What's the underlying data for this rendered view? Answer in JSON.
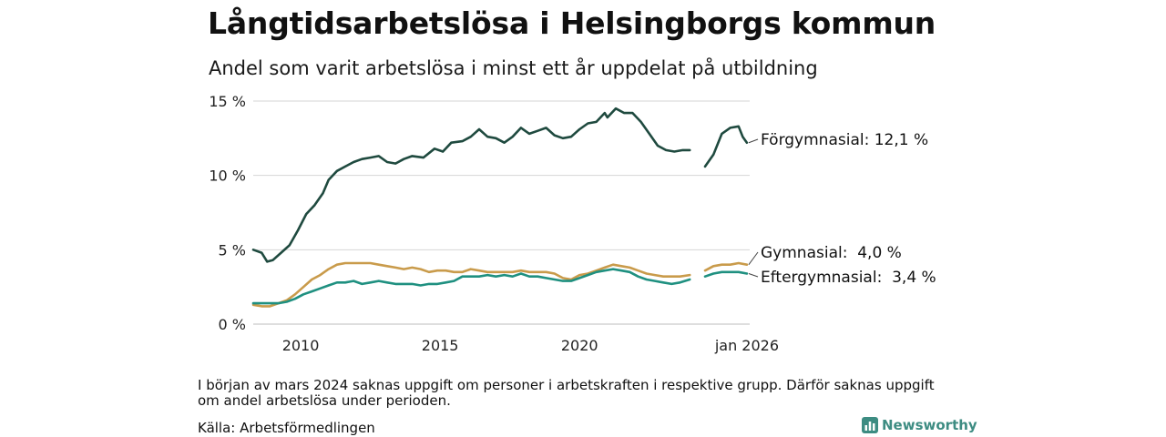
{
  "title": "Långtidsarbetslösa i Helsingborgs kommun",
  "subtitle": "Andel som varit arbetslösa i minst ett år uppdelat på utbildning",
  "note": "I början av mars 2024 saknas uppgift om personer i arbetskraften i respektive grupp. Därför saknas uppgift om andel arbetslösa under perioden.",
  "source": "Källa: Arbetsförmedlingen",
  "brand": "Newsworthy",
  "chart_data": {
    "type": "line",
    "title": "Långtidsarbetslösa i Helsingborgs kommun",
    "xlabel": "",
    "ylabel": "",
    "xlim": [
      2008.3,
      2026.1
    ],
    "ylim": [
      0,
      15
    ],
    "grid": true,
    "yticks": [
      0,
      5,
      10,
      15
    ],
    "ytick_labels": [
      "0 %",
      "5 %",
      "10 %",
      "15 %"
    ],
    "xticks": [
      2010,
      2015,
      2020,
      2026.0
    ],
    "xtick_labels": [
      "2010",
      "2015",
      "2020",
      "jan 2026"
    ],
    "gap": [
      2024.08,
      2024.5
    ],
    "series": [
      {
        "name": "Förgymnasial",
        "label": "Förgymnasial: 12,1 %",
        "color": "#1f4a3f",
        "points": [
          [
            2008.3,
            5.0
          ],
          [
            2008.6,
            4.8
          ],
          [
            2008.8,
            4.2
          ],
          [
            2009.0,
            4.3
          ],
          [
            2009.3,
            4.8
          ],
          [
            2009.6,
            5.3
          ],
          [
            2009.9,
            6.3
          ],
          [
            2010.2,
            7.4
          ],
          [
            2010.5,
            8.0
          ],
          [
            2010.8,
            8.8
          ],
          [
            2011.0,
            9.7
          ],
          [
            2011.3,
            10.3
          ],
          [
            2011.6,
            10.6
          ],
          [
            2011.9,
            10.9
          ],
          [
            2012.2,
            11.1
          ],
          [
            2012.5,
            11.2
          ],
          [
            2012.8,
            11.3
          ],
          [
            2013.1,
            10.9
          ],
          [
            2013.4,
            10.8
          ],
          [
            2013.7,
            11.1
          ],
          [
            2014.0,
            11.3
          ],
          [
            2014.4,
            11.2
          ],
          [
            2014.8,
            11.8
          ],
          [
            2015.1,
            11.6
          ],
          [
            2015.4,
            12.2
          ],
          [
            2015.8,
            12.3
          ],
          [
            2016.1,
            12.6
          ],
          [
            2016.4,
            13.1
          ],
          [
            2016.7,
            12.6
          ],
          [
            2017.0,
            12.5
          ],
          [
            2017.3,
            12.2
          ],
          [
            2017.6,
            12.6
          ],
          [
            2017.9,
            13.2
          ],
          [
            2018.2,
            12.8
          ],
          [
            2018.5,
            13.0
          ],
          [
            2018.8,
            13.2
          ],
          [
            2019.1,
            12.7
          ],
          [
            2019.4,
            12.5
          ],
          [
            2019.7,
            12.6
          ],
          [
            2020.0,
            13.1
          ],
          [
            2020.3,
            13.5
          ],
          [
            2020.6,
            13.6
          ],
          [
            2020.9,
            14.2
          ],
          [
            2021.0,
            13.9
          ],
          [
            2021.3,
            14.5
          ],
          [
            2021.6,
            14.2
          ],
          [
            2021.9,
            14.2
          ],
          [
            2022.2,
            13.6
          ],
          [
            2022.5,
            12.8
          ],
          [
            2022.8,
            12.0
          ],
          [
            2023.1,
            11.7
          ],
          [
            2023.4,
            11.6
          ],
          [
            2023.7,
            11.7
          ],
          [
            2023.95,
            11.7
          ],
          [
            2024.5,
            10.6
          ],
          [
            2024.8,
            11.4
          ],
          [
            2025.1,
            12.8
          ],
          [
            2025.4,
            13.2
          ],
          [
            2025.7,
            13.3
          ],
          [
            2025.85,
            12.6
          ],
          [
            2026.0,
            12.2
          ]
        ]
      },
      {
        "name": "Gymnasial",
        "label": "Gymnasial:  4,0 %",
        "color": "#c99b4b",
        "points": [
          [
            2008.3,
            1.3
          ],
          [
            2008.6,
            1.2
          ],
          [
            2008.9,
            1.2
          ],
          [
            2009.2,
            1.4
          ],
          [
            2009.5,
            1.6
          ],
          [
            2009.8,
            2.0
          ],
          [
            2010.1,
            2.5
          ],
          [
            2010.4,
            3.0
          ],
          [
            2010.7,
            3.3
          ],
          [
            2011.0,
            3.7
          ],
          [
            2011.3,
            4.0
          ],
          [
            2011.6,
            4.1
          ],
          [
            2011.9,
            4.1
          ],
          [
            2012.2,
            4.1
          ],
          [
            2012.5,
            4.1
          ],
          [
            2012.8,
            4.0
          ],
          [
            2013.1,
            3.9
          ],
          [
            2013.4,
            3.8
          ],
          [
            2013.7,
            3.7
          ],
          [
            2014.0,
            3.8
          ],
          [
            2014.3,
            3.7
          ],
          [
            2014.6,
            3.5
          ],
          [
            2014.9,
            3.6
          ],
          [
            2015.2,
            3.6
          ],
          [
            2015.5,
            3.5
          ],
          [
            2015.8,
            3.5
          ],
          [
            2016.1,
            3.7
          ],
          [
            2016.4,
            3.6
          ],
          [
            2016.7,
            3.5
          ],
          [
            2017.0,
            3.5
          ],
          [
            2017.3,
            3.5
          ],
          [
            2017.6,
            3.5
          ],
          [
            2017.9,
            3.6
          ],
          [
            2018.2,
            3.5
          ],
          [
            2018.5,
            3.5
          ],
          [
            2018.8,
            3.5
          ],
          [
            2019.1,
            3.4
          ],
          [
            2019.4,
            3.1
          ],
          [
            2019.7,
            3.0
          ],
          [
            2020.0,
            3.3
          ],
          [
            2020.3,
            3.4
          ],
          [
            2020.6,
            3.6
          ],
          [
            2020.9,
            3.8
          ],
          [
            2021.2,
            4.0
          ],
          [
            2021.5,
            3.9
          ],
          [
            2021.8,
            3.8
          ],
          [
            2022.1,
            3.6
          ],
          [
            2022.4,
            3.4
          ],
          [
            2022.7,
            3.3
          ],
          [
            2023.0,
            3.2
          ],
          [
            2023.3,
            3.2
          ],
          [
            2023.6,
            3.2
          ],
          [
            2023.95,
            3.3
          ],
          [
            2024.5,
            3.6
          ],
          [
            2024.8,
            3.9
          ],
          [
            2025.1,
            4.0
          ],
          [
            2025.4,
            4.0
          ],
          [
            2025.7,
            4.1
          ],
          [
            2026.0,
            4.0
          ]
        ]
      },
      {
        "name": "Eftergymnasial",
        "label": "Eftergymnasial:  3,4 %",
        "color": "#1f9080",
        "points": [
          [
            2008.3,
            1.4
          ],
          [
            2008.6,
            1.4
          ],
          [
            2008.9,
            1.4
          ],
          [
            2009.2,
            1.4
          ],
          [
            2009.5,
            1.5
          ],
          [
            2009.8,
            1.7
          ],
          [
            2010.1,
            2.0
          ],
          [
            2010.4,
            2.2
          ],
          [
            2010.7,
            2.4
          ],
          [
            2011.0,
            2.6
          ],
          [
            2011.3,
            2.8
          ],
          [
            2011.6,
            2.8
          ],
          [
            2011.9,
            2.9
          ],
          [
            2012.2,
            2.7
          ],
          [
            2012.5,
            2.8
          ],
          [
            2012.8,
            2.9
          ],
          [
            2013.1,
            2.8
          ],
          [
            2013.4,
            2.7
          ],
          [
            2013.7,
            2.7
          ],
          [
            2014.0,
            2.7
          ],
          [
            2014.3,
            2.6
          ],
          [
            2014.6,
            2.7
          ],
          [
            2014.9,
            2.7
          ],
          [
            2015.2,
            2.8
          ],
          [
            2015.5,
            2.9
          ],
          [
            2015.8,
            3.2
          ],
          [
            2016.1,
            3.2
          ],
          [
            2016.4,
            3.2
          ],
          [
            2016.7,
            3.3
          ],
          [
            2017.0,
            3.2
          ],
          [
            2017.3,
            3.3
          ],
          [
            2017.6,
            3.2
          ],
          [
            2017.9,
            3.4
          ],
          [
            2018.2,
            3.2
          ],
          [
            2018.5,
            3.2
          ],
          [
            2018.8,
            3.1
          ],
          [
            2019.1,
            3.0
          ],
          [
            2019.4,
            2.9
          ],
          [
            2019.7,
            2.9
          ],
          [
            2020.0,
            3.1
          ],
          [
            2020.3,
            3.3
          ],
          [
            2020.6,
            3.5
          ],
          [
            2020.9,
            3.6
          ],
          [
            2021.2,
            3.7
          ],
          [
            2021.5,
            3.6
          ],
          [
            2021.8,
            3.5
          ],
          [
            2022.1,
            3.2
          ],
          [
            2022.4,
            3.0
          ],
          [
            2022.7,
            2.9
          ],
          [
            2023.0,
            2.8
          ],
          [
            2023.3,
            2.7
          ],
          [
            2023.6,
            2.8
          ],
          [
            2023.95,
            3.0
          ],
          [
            2024.5,
            3.2
          ],
          [
            2024.8,
            3.4
          ],
          [
            2025.1,
            3.5
          ],
          [
            2025.4,
            3.5
          ],
          [
            2025.7,
            3.5
          ],
          [
            2026.0,
            3.4
          ]
        ]
      }
    ]
  }
}
